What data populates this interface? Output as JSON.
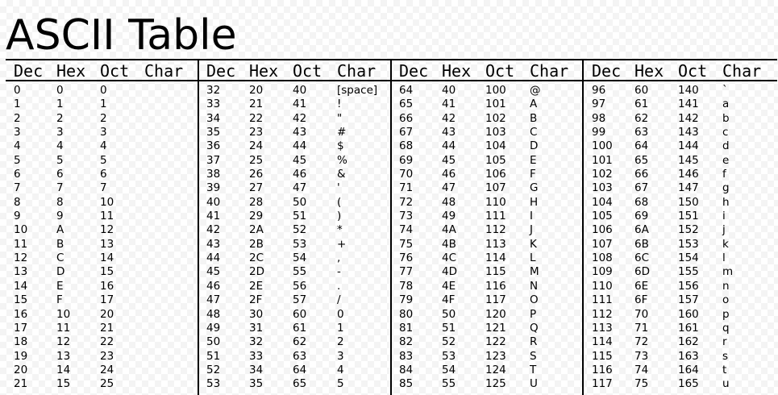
{
  "title": "ASCII Table",
  "headers": [
    "Dec",
    "Hex",
    "Oct",
    "Char"
  ],
  "groups": [
    {
      "rows": [
        [
          "0",
          "0",
          "0",
          ""
        ],
        [
          "1",
          "1",
          "1",
          ""
        ],
        [
          "2",
          "2",
          "2",
          ""
        ],
        [
          "3",
          "3",
          "3",
          ""
        ],
        [
          "4",
          "4",
          "4",
          ""
        ],
        [
          "5",
          "5",
          "5",
          ""
        ],
        [
          "6",
          "6",
          "6",
          ""
        ],
        [
          "7",
          "7",
          "7",
          ""
        ],
        [
          "8",
          "8",
          "10",
          ""
        ],
        [
          "9",
          "9",
          "11",
          ""
        ],
        [
          "10",
          "A",
          "12",
          ""
        ],
        [
          "11",
          "B",
          "13",
          ""
        ],
        [
          "12",
          "C",
          "14",
          ""
        ],
        [
          "13",
          "D",
          "15",
          ""
        ],
        [
          "14",
          "E",
          "16",
          ""
        ],
        [
          "15",
          "F",
          "17",
          ""
        ],
        [
          "16",
          "10",
          "20",
          ""
        ],
        [
          "17",
          "11",
          "21",
          ""
        ],
        [
          "18",
          "12",
          "22",
          ""
        ],
        [
          "19",
          "13",
          "23",
          ""
        ],
        [
          "20",
          "14",
          "24",
          ""
        ],
        [
          "21",
          "15",
          "25",
          ""
        ]
      ]
    },
    {
      "rows": [
        [
          "32",
          "20",
          "40",
          "[space]"
        ],
        [
          "33",
          "21",
          "41",
          "!"
        ],
        [
          "34",
          "22",
          "42",
          "\""
        ],
        [
          "35",
          "23",
          "43",
          "#"
        ],
        [
          "36",
          "24",
          "44",
          "$"
        ],
        [
          "37",
          "25",
          "45",
          "%"
        ],
        [
          "38",
          "26",
          "46",
          "&"
        ],
        [
          "39",
          "27",
          "47",
          "'"
        ],
        [
          "40",
          "28",
          "50",
          "("
        ],
        [
          "41",
          "29",
          "51",
          ")"
        ],
        [
          "42",
          "2A",
          "52",
          "*"
        ],
        [
          "43",
          "2B",
          "53",
          "+"
        ],
        [
          "44",
          "2C",
          "54",
          ","
        ],
        [
          "45",
          "2D",
          "55",
          "-"
        ],
        [
          "46",
          "2E",
          "56",
          "."
        ],
        [
          "47",
          "2F",
          "57",
          "/"
        ],
        [
          "48",
          "30",
          "60",
          "0"
        ],
        [
          "49",
          "31",
          "61",
          "1"
        ],
        [
          "50",
          "32",
          "62",
          "2"
        ],
        [
          "51",
          "33",
          "63",
          "3"
        ],
        [
          "52",
          "34",
          "64",
          "4"
        ],
        [
          "53",
          "35",
          "65",
          "5"
        ]
      ]
    },
    {
      "rows": [
        [
          "64",
          "40",
          "100",
          "@"
        ],
        [
          "65",
          "41",
          "101",
          "A"
        ],
        [
          "66",
          "42",
          "102",
          "B"
        ],
        [
          "67",
          "43",
          "103",
          "C"
        ],
        [
          "68",
          "44",
          "104",
          "D"
        ],
        [
          "69",
          "45",
          "105",
          "E"
        ],
        [
          "70",
          "46",
          "106",
          "F"
        ],
        [
          "71",
          "47",
          "107",
          "G"
        ],
        [
          "72",
          "48",
          "110",
          "H"
        ],
        [
          "73",
          "49",
          "111",
          "I"
        ],
        [
          "74",
          "4A",
          "112",
          "J"
        ],
        [
          "75",
          "4B",
          "113",
          "K"
        ],
        [
          "76",
          "4C",
          "114",
          "L"
        ],
        [
          "77",
          "4D",
          "115",
          "M"
        ],
        [
          "78",
          "4E",
          "116",
          "N"
        ],
        [
          "79",
          "4F",
          "117",
          "O"
        ],
        [
          "80",
          "50",
          "120",
          "P"
        ],
        [
          "81",
          "51",
          "121",
          "Q"
        ],
        [
          "82",
          "52",
          "122",
          "R"
        ],
        [
          "83",
          "53",
          "123",
          "S"
        ],
        [
          "84",
          "54",
          "124",
          "T"
        ],
        [
          "85",
          "55",
          "125",
          "U"
        ]
      ]
    },
    {
      "rows": [
        [
          "96",
          "60",
          "140",
          "`"
        ],
        [
          "97",
          "61",
          "141",
          "a"
        ],
        [
          "98",
          "62",
          "142",
          "b"
        ],
        [
          "99",
          "63",
          "143",
          "c"
        ],
        [
          "100",
          "64",
          "144",
          "d"
        ],
        [
          "101",
          "65",
          "145",
          "e"
        ],
        [
          "102",
          "66",
          "146",
          "f"
        ],
        [
          "103",
          "67",
          "147",
          "g"
        ],
        [
          "104",
          "68",
          "150",
          "h"
        ],
        [
          "105",
          "69",
          "151",
          "i"
        ],
        [
          "106",
          "6A",
          "152",
          "j"
        ],
        [
          "107",
          "6B",
          "153",
          "k"
        ],
        [
          "108",
          "6C",
          "154",
          "l"
        ],
        [
          "109",
          "6D",
          "155",
          "m"
        ],
        [
          "110",
          "6E",
          "156",
          "n"
        ],
        [
          "111",
          "6F",
          "157",
          "o"
        ],
        [
          "112",
          "70",
          "160",
          "p"
        ],
        [
          "113",
          "71",
          "161",
          "q"
        ],
        [
          "114",
          "72",
          "162",
          "r"
        ],
        [
          "115",
          "73",
          "163",
          "s"
        ],
        [
          "116",
          "74",
          "164",
          "t"
        ],
        [
          "117",
          "75",
          "165",
          "u"
        ]
      ]
    }
  ]
}
